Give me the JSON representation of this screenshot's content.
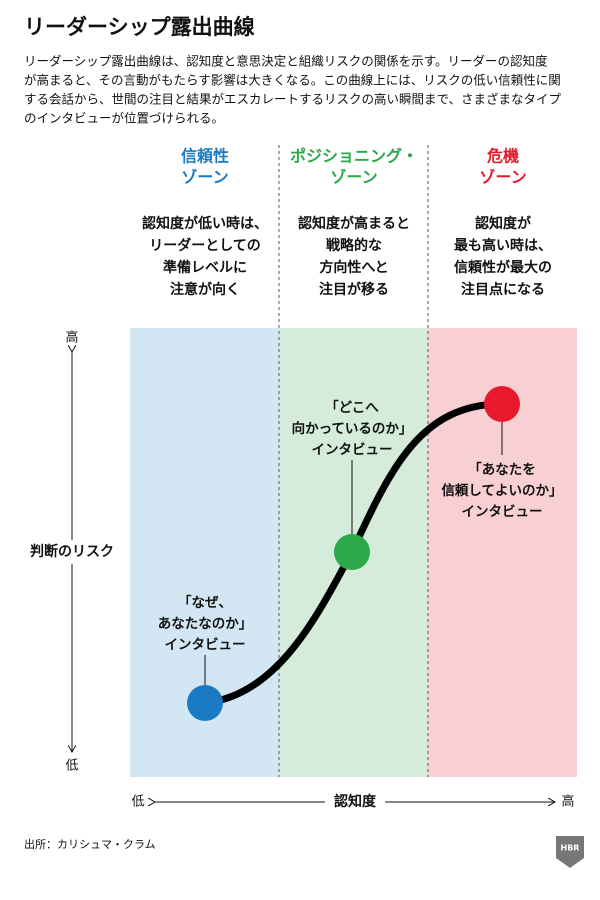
{
  "header": {
    "title": "リーダーシップ露出曲線",
    "description": [
      "リーダーシップ露出曲線は、認知度と意思決定と組織リスクの関係を示す。リーダーの認知度",
      "が高まると、その言動がもたらす影響は大きくなる。この曲線上には、リスクの低い信頼性に関",
      "する会話から、世間の注目と結果がエスカレートするリスクの高い瞬間まで、さまざまなタイプ",
      "のインタビューが位置づけられる。"
    ]
  },
  "zones": [
    {
      "title": [
        "信頼性",
        "ゾーン"
      ],
      "description": [
        "認知度が低い時は、",
        "リーダーとしての",
        "準備レベルに",
        "注意が向く"
      ]
    },
    {
      "title": [
        "ポジショニング・",
        "ゾーン"
      ],
      "description": [
        "認知度が高まると",
        "戦略的な",
        "方向性へと",
        "注目が移る"
      ]
    },
    {
      "title": [
        "危機",
        "ゾーン"
      ],
      "description": [
        "認知度が",
        "最も高い時は、",
        "信頼性が最大の",
        "注目点になる"
      ]
    }
  ],
  "y_axis": {
    "label": "判断のリスク",
    "high": "高",
    "low": "低"
  },
  "x_axis": {
    "label": "認知度",
    "low": "低",
    "high": "高"
  },
  "points": [
    {
      "label": [
        "「なぜ、",
        "あなたなのか」",
        "インタビュー"
      ]
    },
    {
      "label": [
        "「どこへ",
        "向かっているのか」",
        "インタビュー"
      ]
    },
    {
      "label": [
        "「あなたを",
        "信頼してよいのか」",
        "インタビュー"
      ]
    }
  ],
  "footer": {
    "source": "出所：カリシュマ・クラム",
    "logo": "HBR"
  }
}
